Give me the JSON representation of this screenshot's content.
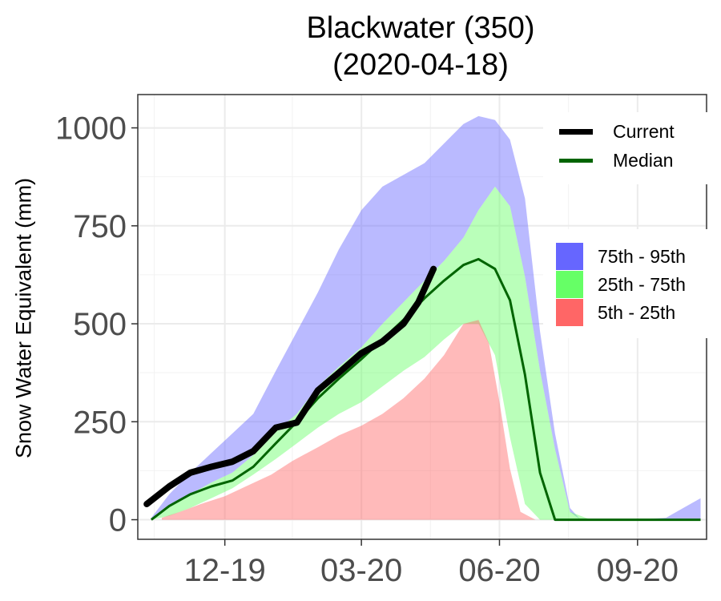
{
  "chart_data": {
    "type": "area",
    "title": "Blackwater (350)",
    "subtitle": "(2020-04-18)",
    "xlabel": "",
    "ylabel": "Snow Water Equivalent (mm)",
    "x_ticks": [
      "12-19",
      "03-20",
      "06-20",
      "09-20"
    ],
    "y_ticks": [
      0,
      250,
      500,
      750,
      1000
    ],
    "ylim": [
      -50,
      1085
    ],
    "xlim": [
      "2019-10-04",
      "2020-10-17"
    ],
    "grid": true,
    "legend": {
      "position": "right",
      "lines": [
        {
          "label": "Current",
          "color": "#000000"
        },
        {
          "label": "Median",
          "color": "#006400"
        }
      ],
      "bands": [
        {
          "label": "75th - 95th",
          "color": "#6666FF"
        },
        {
          "label": "25th - 75th",
          "color": "#66FF66"
        },
        {
          "label": "5th - 25th",
          "color": "#FF6666"
        }
      ]
    },
    "series": [
      {
        "name": "Current",
        "x": [
          "2019-10-10",
          "2019-10-25",
          "2019-11-08",
          "2019-11-22",
          "2019-12-06",
          "2019-12-20",
          "2020-01-04",
          "2020-01-18",
          "2020-02-01",
          "2020-02-15",
          "2020-03-01",
          "2020-03-15",
          "2020-03-29",
          "2020-04-08",
          "2020-04-18"
        ],
        "values": [
          40,
          85,
          120,
          135,
          148,
          175,
          235,
          248,
          330,
          375,
          425,
          455,
          500,
          555,
          640
        ]
      },
      {
        "name": "Median",
        "x": [
          "2019-10-13",
          "2019-10-25",
          "2019-11-08",
          "2019-11-22",
          "2019-12-06",
          "2019-12-20",
          "2020-01-04",
          "2020-01-18",
          "2020-02-01",
          "2020-02-15",
          "2020-03-01",
          "2020-03-15",
          "2020-03-29",
          "2020-04-12",
          "2020-04-25",
          "2020-05-08",
          "2020-05-18",
          "2020-05-29",
          "2020-06-08",
          "2020-06-18",
          "2020-06-28",
          "2020-07-08",
          "2020-07-18",
          "2020-08-01",
          "2020-09-01",
          "2020-10-13"
        ],
        "values": [
          0,
          35,
          65,
          85,
          100,
          135,
          195,
          250,
          310,
          360,
          410,
          460,
          510,
          565,
          610,
          650,
          665,
          640,
          560,
          370,
          120,
          0,
          0,
          0,
          0,
          0
        ]
      },
      {
        "name": "75th - 95th",
        "x": [
          "2019-10-13",
          "2019-10-25",
          "2019-11-08",
          "2019-11-22",
          "2019-12-06",
          "2019-12-20",
          "2020-01-04",
          "2020-01-18",
          "2020-02-01",
          "2020-02-15",
          "2020-03-01",
          "2020-03-15",
          "2020-03-29",
          "2020-04-12",
          "2020-04-25",
          "2020-05-08",
          "2020-05-18",
          "2020-05-29",
          "2020-06-08",
          "2020-06-18",
          "2020-06-28",
          "2020-07-08",
          "2020-07-18",
          "2020-07-25",
          "2020-08-01",
          "2020-08-15",
          "2020-09-01",
          "2020-09-20",
          "2020-10-13"
        ],
        "low": [
          0,
          35,
          65,
          95,
          120,
          165,
          225,
          270,
          340,
          390,
          440,
          500,
          555,
          610,
          660,
          720,
          790,
          850,
          800,
          620,
          380,
          180,
          20,
          0,
          0,
          0,
          0,
          0,
          0
        ],
        "high": [
          5,
          65,
          120,
          170,
          220,
          270,
          380,
          480,
          580,
          690,
          790,
          850,
          880,
          910,
          960,
          1010,
          1030,
          1020,
          970,
          820,
          480,
          220,
          30,
          0,
          0,
          0,
          0,
          5,
          55
        ]
      },
      {
        "name": "25th - 75th",
        "x": [
          "2019-10-13",
          "2019-10-25",
          "2019-11-08",
          "2019-11-22",
          "2019-12-06",
          "2019-12-20",
          "2020-01-04",
          "2020-01-18",
          "2020-02-01",
          "2020-02-15",
          "2020-03-01",
          "2020-03-15",
          "2020-03-29",
          "2020-04-12",
          "2020-04-25",
          "2020-05-08",
          "2020-05-18",
          "2020-05-29",
          "2020-06-08",
          "2020-06-18",
          "2020-06-28",
          "2020-07-08",
          "2020-07-18",
          "2020-08-01",
          "2020-10-13"
        ],
        "low": [
          0,
          10,
          30,
          55,
          80,
          115,
          155,
          195,
          235,
          270,
          300,
          340,
          380,
          415,
          460,
          500,
          500,
          420,
          210,
          40,
          0,
          0,
          0,
          0,
          0
        ],
        "high": [
          0,
          35,
          65,
          95,
          120,
          165,
          225,
          270,
          340,
          390,
          440,
          500,
          555,
          610,
          660,
          720,
          790,
          850,
          800,
          620,
          380,
          180,
          20,
          0,
          0
        ]
      },
      {
        "name": "5th - 25th",
        "x": [
          "2019-10-20",
          "2019-11-01",
          "2019-11-15",
          "2019-12-01",
          "2019-12-15",
          "2020-01-01",
          "2020-01-15",
          "2020-02-01",
          "2020-02-15",
          "2020-03-01",
          "2020-03-15",
          "2020-03-29",
          "2020-04-12",
          "2020-04-25",
          "2020-05-08",
          "2020-05-18",
          "2020-05-25",
          "2020-06-01",
          "2020-06-08",
          "2020-06-15",
          "2020-06-25",
          "2020-10-13"
        ],
        "low": [
          0,
          0,
          0,
          0,
          0,
          0,
          0,
          0,
          0,
          0,
          0,
          0,
          0,
          0,
          0,
          0,
          0,
          0,
          0,
          0,
          0,
          0
        ],
        "high": [
          5,
          20,
          40,
          60,
          85,
          115,
          150,
          185,
          215,
          240,
          270,
          310,
          360,
          420,
          500,
          510,
          450,
          300,
          130,
          20,
          0,
          0
        ]
      }
    ]
  }
}
